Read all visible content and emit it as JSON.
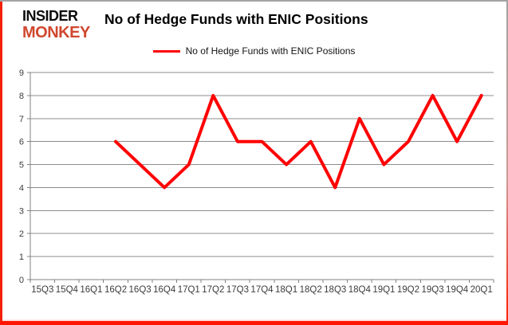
{
  "logo": {
    "line1": "INSIDER",
    "line2": "MONKEY",
    "red": "#d0482e"
  },
  "header": {
    "title": "No of Hedge Funds with ENIC Positions"
  },
  "legend": {
    "label": "No of Hedge Funds with ENIC Positions",
    "color": "#ff0000"
  },
  "chart_data": {
    "type": "line",
    "title": "No of Hedge Funds with ENIC Positions",
    "categories": [
      "15Q3",
      "15Q4",
      "16Q1",
      "16Q2",
      "16Q3",
      "16Q4",
      "17Q1",
      "17Q2",
      "17Q3",
      "17Q4",
      "18Q1",
      "18Q2",
      "18Q3",
      "18Q4",
      "19Q1",
      "19Q2",
      "19Q3",
      "19Q4",
      "20Q1"
    ],
    "series": [
      {
        "name": "No of Hedge Funds with ENIC Positions",
        "color": "#ff0000",
        "values": [
          null,
          null,
          null,
          6,
          5,
          4,
          5,
          8,
          6,
          6,
          5,
          6,
          4,
          7,
          5,
          6,
          8,
          6,
          8
        ]
      }
    ],
    "xlabel": "",
    "ylabel": "",
    "ylim": [
      0,
      9
    ],
    "ytick_interval": 1,
    "grid": "horizontal",
    "legend_position": "top",
    "colors": {
      "gridline": "#8c8c8c",
      "axis": "#808080",
      "tick_label": "#3c3c3c"
    }
  }
}
